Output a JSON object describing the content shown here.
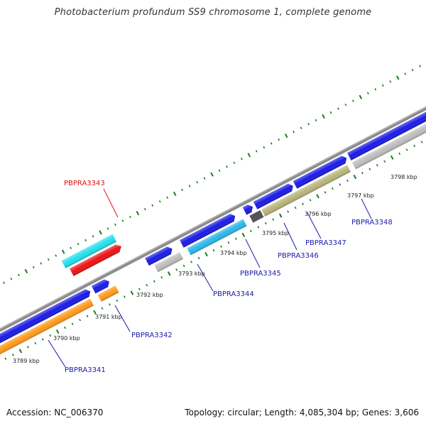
{
  "title": "Photobacterium profundum SS9 chromosome 1, complete genome",
  "footer": {
    "accession": "Accession: NC_006370",
    "summary": "Topology: circular; Length: 4,085,304 bp; Genes: 3,606"
  },
  "colors": {
    "backbone": "#8c8c8c",
    "tick": "#1e7a1e",
    "label_default": "#1a1aa8",
    "label_highlight": "#dd1111",
    "cds_blue": "#1a1ae6",
    "cds_orange": "#ff9a1a",
    "cds_cyan": "#22e0ee",
    "cds_skyblue": "#2ab8ea",
    "cds_red": "#ee1111",
    "cds_gray": "#bdbdbd",
    "cds_olive": "#b8b47a",
    "cds_dark": "#555555"
  },
  "kbp_labels": [
    "3789 kbp",
    "3790 kbp",
    "3791 kbp",
    "3792 kbp",
    "3793 kbp",
    "3794 kbp",
    "3795 kbp",
    "3796 kbp",
    "3797 kbp",
    "3798 kbp"
  ],
  "gene_labels": [
    {
      "text": "PBPRA3341",
      "highlight": false
    },
    {
      "text": "PBPRA3342",
      "highlight": false
    },
    {
      "text": "PBPRA3343",
      "highlight": true
    },
    {
      "text": "PBPRA3344",
      "highlight": false
    },
    {
      "text": "PBPRA3345",
      "highlight": false
    },
    {
      "text": "PBPRA3346",
      "highlight": false
    },
    {
      "text": "PBPRA3347",
      "highlight": false
    },
    {
      "text": "PBPRA3348",
      "highlight": false
    }
  ]
}
